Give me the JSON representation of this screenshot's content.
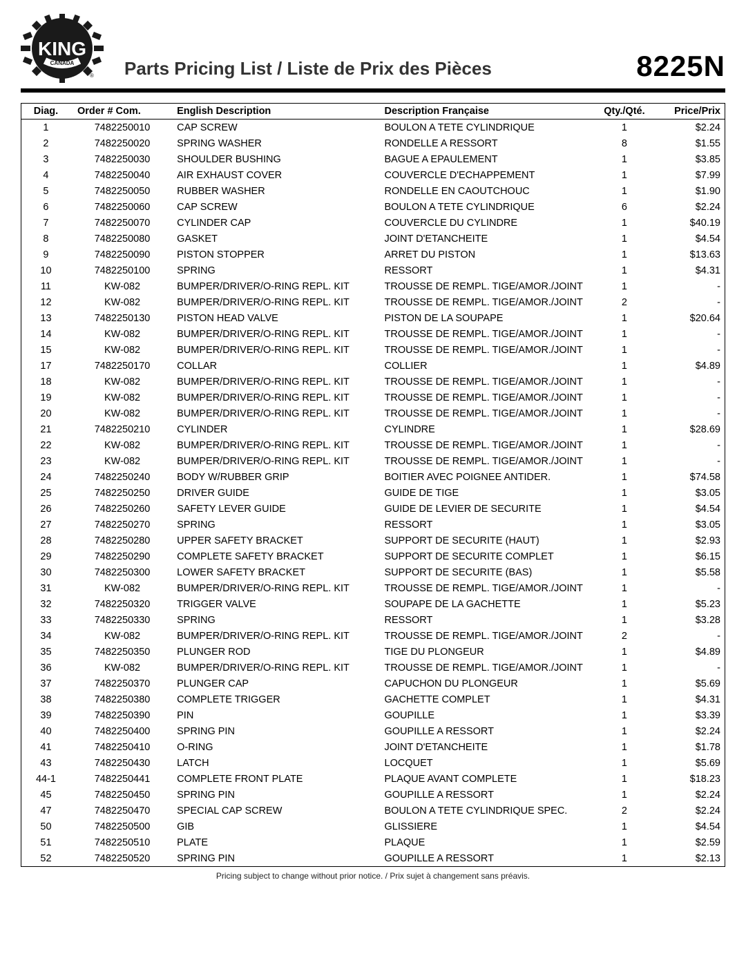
{
  "header": {
    "logo_text_top": "KING",
    "logo_text_bottom": "CANADA",
    "title": "Parts Pricing List / Liste de Prix des Pièces",
    "model": "8225N"
  },
  "table": {
    "columns": {
      "diag": "Diag.",
      "order": "Order # Com.",
      "eng": "English Description",
      "fr": "Description Française",
      "qty": "Qty./Qté.",
      "price": "Price/Prix"
    },
    "rows": [
      {
        "diag": "1",
        "order": "7482250010",
        "eng": "CAP SCREW",
        "fr": "BOULON A TETE CYLINDRIQUE",
        "qty": "1",
        "price": "$2.24"
      },
      {
        "diag": "2",
        "order": "7482250020",
        "eng": "SPRING WASHER",
        "fr": "RONDELLE A RESSORT",
        "qty": "8",
        "price": "$1.55"
      },
      {
        "diag": "3",
        "order": "7482250030",
        "eng": "SHOULDER BUSHING",
        "fr": "BAGUE A EPAULEMENT",
        "qty": "1",
        "price": "$3.85"
      },
      {
        "diag": "4",
        "order": "7482250040",
        "eng": "AIR EXHAUST COVER",
        "fr": "COUVERCLE D'ECHAPPEMENT",
        "qty": "1",
        "price": "$7.99"
      },
      {
        "diag": "5",
        "order": "7482250050",
        "eng": "RUBBER WASHER",
        "fr": "RONDELLE EN CAOUTCHOUC",
        "qty": "1",
        "price": "$1.90"
      },
      {
        "diag": "6",
        "order": "7482250060",
        "eng": "CAP SCREW",
        "fr": "BOULON A TETE CYLINDRIQUE",
        "qty": "6",
        "price": "$2.24"
      },
      {
        "diag": "7",
        "order": "7482250070",
        "eng": "CYLINDER CAP",
        "fr": "COUVERCLE DU CYLINDRE",
        "qty": "1",
        "price": "$40.19"
      },
      {
        "diag": "8",
        "order": "7482250080",
        "eng": "GASKET",
        "fr": "JOINT D'ETANCHEITE",
        "qty": "1",
        "price": "$4.54"
      },
      {
        "diag": "9",
        "order": "7482250090",
        "eng": "PISTON STOPPER",
        "fr": "ARRET DU PISTON",
        "qty": "1",
        "price": "$13.63"
      },
      {
        "diag": "10",
        "order": "7482250100",
        "eng": "SPRING",
        "fr": "RESSORT",
        "qty": "1",
        "price": "$4.31"
      },
      {
        "diag": "11",
        "order": "KW-082",
        "eng": "BUMPER/DRIVER/O-RING REPL. KIT",
        "fr": "TROUSSE DE REMPL. TIGE/AMOR./JOINT",
        "qty": "1",
        "price": "-"
      },
      {
        "diag": "12",
        "order": "KW-082",
        "eng": "BUMPER/DRIVER/O-RING REPL. KIT",
        "fr": "TROUSSE DE REMPL. TIGE/AMOR./JOINT",
        "qty": "2",
        "price": "-"
      },
      {
        "diag": "13",
        "order": "7482250130",
        "eng": "PISTON HEAD VALVE",
        "fr": "PISTON DE LA SOUPAPE",
        "qty": "1",
        "price": "$20.64"
      },
      {
        "diag": "14",
        "order": "KW-082",
        "eng": "BUMPER/DRIVER/O-RING REPL. KIT",
        "fr": "TROUSSE DE REMPL. TIGE/AMOR./JOINT",
        "qty": "1",
        "price": "-"
      },
      {
        "diag": "15",
        "order": "KW-082",
        "eng": "BUMPER/DRIVER/O-RING REPL. KIT",
        "fr": "TROUSSE DE REMPL. TIGE/AMOR./JOINT",
        "qty": "1",
        "price": "-"
      },
      {
        "diag": "17",
        "order": "7482250170",
        "eng": "COLLAR",
        "fr": "COLLIER",
        "qty": "1",
        "price": "$4.89"
      },
      {
        "diag": "18",
        "order": "KW-082",
        "eng": "BUMPER/DRIVER/O-RING REPL. KIT",
        "fr": "TROUSSE DE REMPL. TIGE/AMOR./JOINT",
        "qty": "1",
        "price": "-"
      },
      {
        "diag": "19",
        "order": "KW-082",
        "eng": "BUMPER/DRIVER/O-RING REPL. KIT",
        "fr": "TROUSSE DE REMPL. TIGE/AMOR./JOINT",
        "qty": "1",
        "price": "-"
      },
      {
        "diag": "20",
        "order": "KW-082",
        "eng": "BUMPER/DRIVER/O-RING REPL. KIT",
        "fr": "TROUSSE DE REMPL. TIGE/AMOR./JOINT",
        "qty": "1",
        "price": "-"
      },
      {
        "diag": "21",
        "order": "7482250210",
        "eng": "CYLINDER",
        "fr": "CYLINDRE",
        "qty": "1",
        "price": "$28.69"
      },
      {
        "diag": "22",
        "order": "KW-082",
        "eng": "BUMPER/DRIVER/O-RING REPL. KIT",
        "fr": "TROUSSE DE REMPL. TIGE/AMOR./JOINT",
        "qty": "1",
        "price": "-"
      },
      {
        "diag": "23",
        "order": "KW-082",
        "eng": "BUMPER/DRIVER/O-RING REPL. KIT",
        "fr": "TROUSSE DE REMPL. TIGE/AMOR./JOINT",
        "qty": "1",
        "price": "-"
      },
      {
        "diag": "24",
        "order": "7482250240",
        "eng": "BODY W/RUBBER GRIP",
        "fr": "BOITIER AVEC POIGNEE ANTIDER.",
        "qty": "1",
        "price": "$74.58"
      },
      {
        "diag": "25",
        "order": "7482250250",
        "eng": "DRIVER GUIDE",
        "fr": "GUIDE DE TIGE",
        "qty": "1",
        "price": "$3.05"
      },
      {
        "diag": "26",
        "order": "7482250260",
        "eng": "SAFETY LEVER GUIDE",
        "fr": "GUIDE DE LEVIER DE SECURITE",
        "qty": "1",
        "price": "$4.54"
      },
      {
        "diag": "27",
        "order": "7482250270",
        "eng": "SPRING",
        "fr": "RESSORT",
        "qty": "1",
        "price": "$3.05"
      },
      {
        "diag": "28",
        "order": "7482250280",
        "eng": "UPPER SAFETY BRACKET",
        "fr": "SUPPORT DE SECURITE (HAUT)",
        "qty": "1",
        "price": "$2.93"
      },
      {
        "diag": "29",
        "order": "7482250290",
        "eng": "COMPLETE SAFETY BRACKET",
        "fr": "SUPPORT DE SECURITE COMPLET",
        "qty": "1",
        "price": "$6.15"
      },
      {
        "diag": "30",
        "order": "7482250300",
        "eng": "LOWER SAFETY BRACKET",
        "fr": "SUPPORT DE SECURITE (BAS)",
        "qty": "1",
        "price": "$5.58"
      },
      {
        "diag": "31",
        "order": "KW-082",
        "eng": "BUMPER/DRIVER/O-RING REPL. KIT",
        "fr": "TROUSSE DE REMPL. TIGE/AMOR./JOINT",
        "qty": "1",
        "price": "-"
      },
      {
        "diag": "32",
        "order": "7482250320",
        "eng": "TRIGGER VALVE",
        "fr": "SOUPAPE DE LA GACHETTE",
        "qty": "1",
        "price": "$5.23"
      },
      {
        "diag": "33",
        "order": "7482250330",
        "eng": "SPRING",
        "fr": "RESSORT",
        "qty": "1",
        "price": "$3.28"
      },
      {
        "diag": "34",
        "order": "KW-082",
        "eng": "BUMPER/DRIVER/O-RING REPL. KIT",
        "fr": "TROUSSE DE REMPL. TIGE/AMOR./JOINT",
        "qty": "2",
        "price": "-"
      },
      {
        "diag": "35",
        "order": "7482250350",
        "eng": "PLUNGER ROD",
        "fr": "TIGE DU PLONGEUR",
        "qty": "1",
        "price": "$4.89"
      },
      {
        "diag": "36",
        "order": "KW-082",
        "eng": "BUMPER/DRIVER/O-RING REPL. KIT",
        "fr": "TROUSSE DE REMPL. TIGE/AMOR./JOINT",
        "qty": "1",
        "price": "-"
      },
      {
        "diag": "37",
        "order": "7482250370",
        "eng": "PLUNGER CAP",
        "fr": "CAPUCHON DU PLONGEUR",
        "qty": "1",
        "price": "$5.69"
      },
      {
        "diag": "38",
        "order": "7482250380",
        "eng": "COMPLETE TRIGGER",
        "fr": "GACHETTE COMPLET",
        "qty": "1",
        "price": "$4.31"
      },
      {
        "diag": "39",
        "order": "7482250390",
        "eng": "PIN",
        "fr": "GOUPILLE",
        "qty": "1",
        "price": "$3.39"
      },
      {
        "diag": "40",
        "order": "7482250400",
        "eng": "SPRING PIN",
        "fr": "GOUPILLE A RESSORT",
        "qty": "1",
        "price": "$2.24"
      },
      {
        "diag": "41",
        "order": "7482250410",
        "eng": "O-RING",
        "fr": "JOINT D'ETANCHEITE",
        "qty": "1",
        "price": "$1.78"
      },
      {
        "diag": "43",
        "order": "7482250430",
        "eng": "LATCH",
        "fr": "LOCQUET",
        "qty": "1",
        "price": "$5.69"
      },
      {
        "diag": "44-1",
        "order": "7482250441",
        "eng": "COMPLETE FRONT PLATE",
        "fr": "PLAQUE AVANT COMPLETE",
        "qty": "1",
        "price": "$18.23"
      },
      {
        "diag": "45",
        "order": "7482250450",
        "eng": "SPRING PIN",
        "fr": "GOUPILLE A RESSORT",
        "qty": "1",
        "price": "$2.24"
      },
      {
        "diag": "47",
        "order": "7482250470",
        "eng": "SPECIAL CAP SCREW",
        "fr": "BOULON A TETE CYLINDRIQUE SPEC.",
        "qty": "2",
        "price": "$2.24"
      },
      {
        "diag": "50",
        "order": "7482250500",
        "eng": "GIB",
        "fr": "GLISSIERE",
        "qty": "1",
        "price": "$4.54"
      },
      {
        "diag": "51",
        "order": "7482250510",
        "eng": "PLATE",
        "fr": "PLAQUE",
        "qty": "1",
        "price": "$2.59"
      },
      {
        "diag": "52",
        "order": "7482250520",
        "eng": "SPRING PIN",
        "fr": "GOUPILLE A RESSORT",
        "qty": "1",
        "price": "$2.13"
      }
    ]
  },
  "footer": "Pricing subject to change without prior notice. / Prix sujet à changement sans préavis."
}
